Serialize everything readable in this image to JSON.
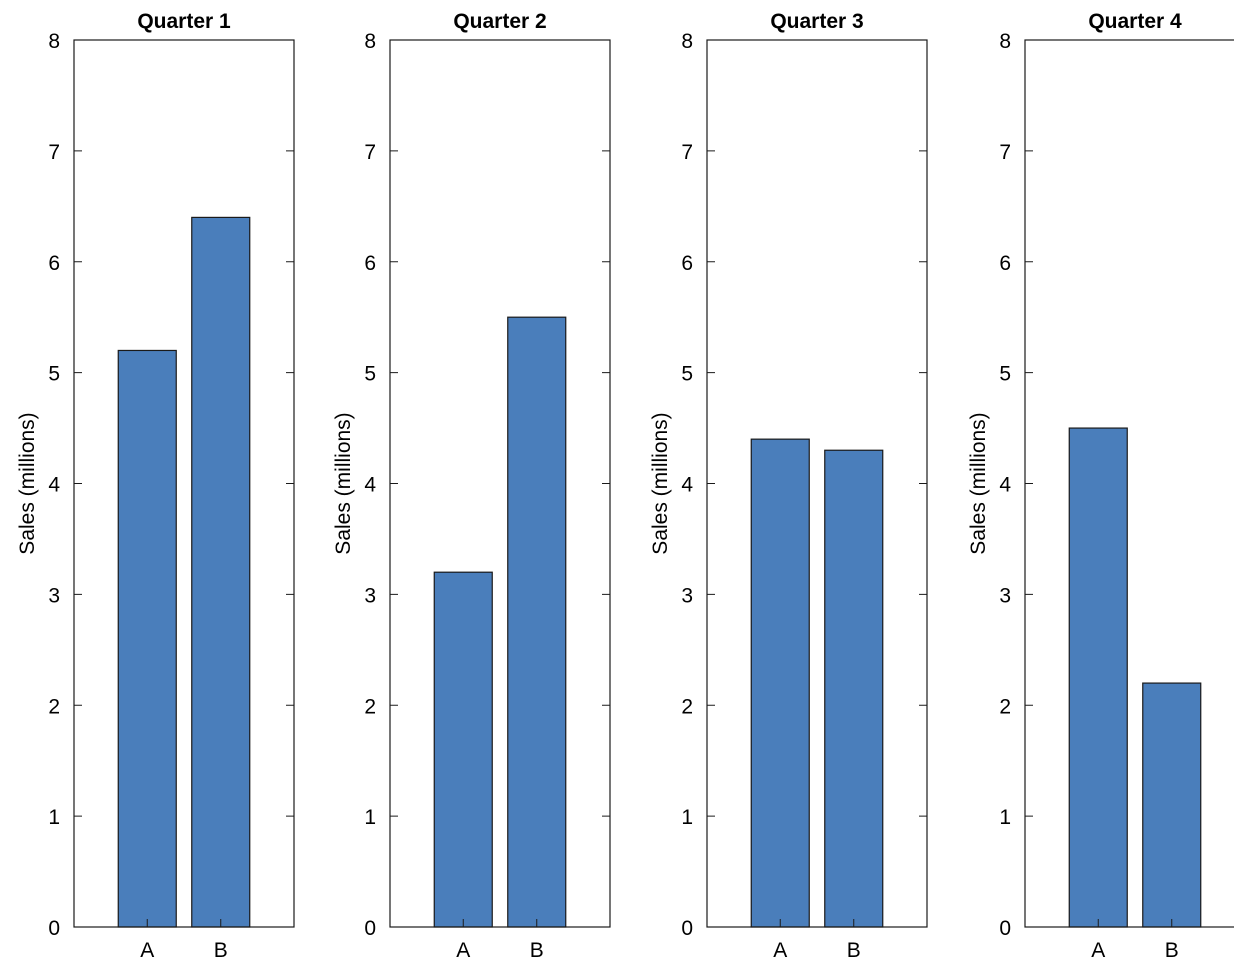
{
  "chart_data": [
    {
      "type": "bar",
      "title": "Quarter 1",
      "categories": [
        "A",
        "B"
      ],
      "values": [
        5.2,
        6.4
      ],
      "ylabel": "Sales (millions)",
      "ylim": [
        0,
        8
      ],
      "yticks": [
        0,
        1,
        2,
        3,
        4,
        5,
        6,
        7,
        8
      ],
      "grid": false,
      "color": "#4a7ebb"
    },
    {
      "type": "bar",
      "title": "Quarter 2",
      "categories": [
        "A",
        "B"
      ],
      "values": [
        3.2,
        5.5
      ],
      "ylabel": "Sales (millions)",
      "ylim": [
        0,
        8
      ],
      "yticks": [
        0,
        1,
        2,
        3,
        4,
        5,
        6,
        7,
        8
      ],
      "grid": false,
      "color": "#4a7ebb"
    },
    {
      "type": "bar",
      "title": "Quarter 3",
      "categories": [
        "A",
        "B"
      ],
      "values": [
        4.4,
        4.3
      ],
      "ylabel": "Sales (millions)",
      "ylim": [
        0,
        8
      ],
      "yticks": [
        0,
        1,
        2,
        3,
        4,
        5,
        6,
        7,
        8
      ],
      "grid": false,
      "color": "#4a7ebb"
    },
    {
      "type": "bar",
      "title": "Quarter 4",
      "categories": [
        "A",
        "B"
      ],
      "values": [
        4.5,
        2.2
      ],
      "ylabel": "Sales (millions)",
      "ylim": [
        0,
        8
      ],
      "yticks": [
        0,
        1,
        2,
        3,
        4,
        5,
        6,
        7,
        8
      ],
      "grid": false,
      "color": "#4a7ebb"
    }
  ]
}
